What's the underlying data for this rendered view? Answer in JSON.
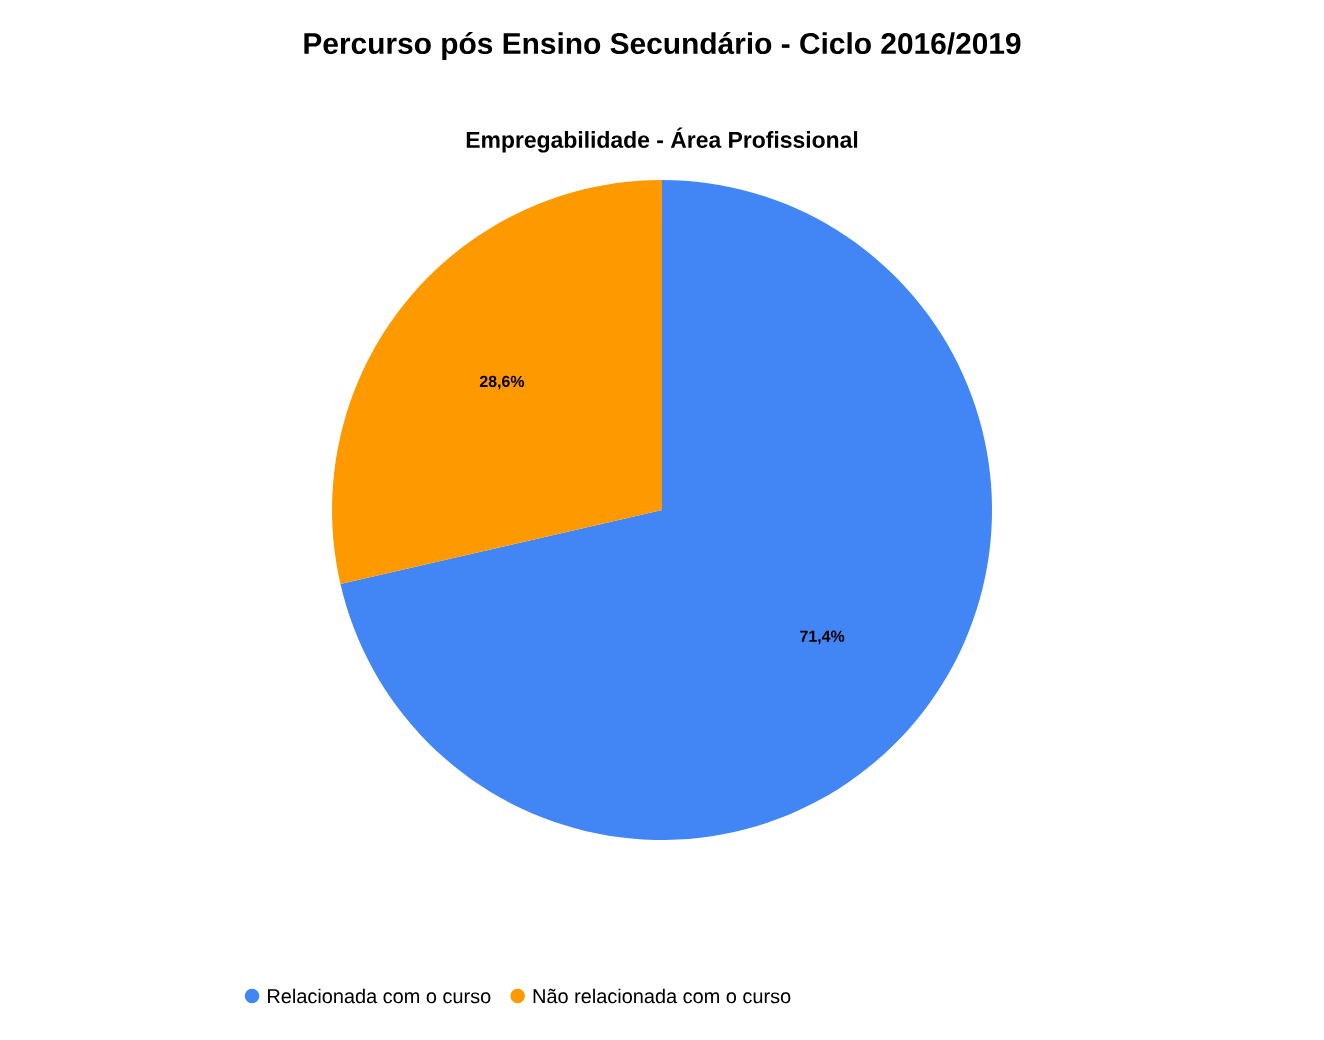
{
  "chart_data": {
    "type": "pie",
    "title": "Percurso pós Ensino Secundário - Ciclo 2016/2019",
    "subtitle": "Empregabilidade - Área Profissional",
    "categories": [
      "Relacionada com o curso",
      "Não relacionada com o curso"
    ],
    "values": [
      71.4,
      28.6
    ],
    "value_labels": [
      "71,4%",
      "28,6%"
    ],
    "colors": [
      "#4285f4",
      "#ff9900"
    ],
    "legend": "bottom"
  }
}
